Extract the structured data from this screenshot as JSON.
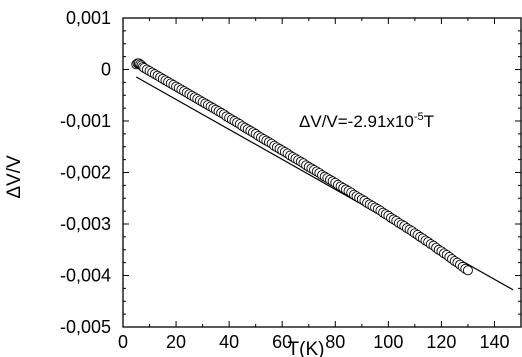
{
  "chart_data": {
    "type": "scatter",
    "xlabel": "T(K)",
    "ylabel": "ΔV/V",
    "xlim": [
      0,
      150
    ],
    "ylim": [
      -0.005,
      0.001
    ],
    "x_ticks": [
      0,
      20,
      40,
      60,
      80,
      100,
      120,
      140
    ],
    "x_tick_labels": [
      "0",
      "20",
      "40",
      "60",
      "80",
      "100",
      "120",
      "140"
    ],
    "y_ticks": [
      0.001,
      0,
      -0.001,
      -0.002,
      -0.003,
      -0.004,
      -0.005
    ],
    "y_tick_labels": [
      "0,001",
      "0",
      "-0,001",
      "-0,002",
      "-0,003",
      "-0,004",
      "-0,005"
    ],
    "grid": false,
    "annotation": {
      "prefix": "ΔV/V=-2.91x10",
      "exponent": "-5",
      "suffix": "T"
    },
    "fit_line": {
      "slope": -2.91e-05,
      "intercept": 0,
      "x_range": [
        5,
        147
      ]
    },
    "series": [
      {
        "marker": "open-circle",
        "x": [
          5,
          5.5,
          6,
          6.5,
          7,
          7.5,
          8,
          9,
          10,
          11,
          12,
          13,
          14,
          15,
          16,
          17,
          18,
          19,
          20,
          21,
          22,
          23,
          24,
          25,
          26,
          27,
          28,
          29,
          30,
          31,
          32,
          33,
          34,
          35,
          36,
          37,
          38,
          39,
          40,
          41,
          42,
          43,
          44,
          45,
          46,
          47,
          48,
          49,
          50,
          51,
          52,
          53,
          54,
          55,
          56,
          57,
          58,
          59,
          60,
          61,
          62,
          63,
          64,
          65,
          66,
          67,
          68,
          69,
          70,
          71,
          72,
          73,
          74,
          75,
          76,
          77,
          78,
          79,
          80,
          81,
          82,
          83,
          84,
          85,
          86,
          87,
          88,
          89,
          90,
          91,
          92,
          93,
          94,
          95,
          96,
          97,
          98,
          99,
          100,
          101,
          102,
          103,
          104,
          105,
          106,
          107,
          108,
          109,
          110,
          111,
          112,
          113,
          114,
          115,
          116,
          117,
          118,
          119,
          120,
          121,
          122,
          123,
          124,
          125,
          126,
          127,
          128,
          129,
          130
        ],
        "y": [
          0.0001,
          0.00012,
          0.00012,
          0.0001,
          8e-05,
          5e-05,
          3e-05,
          0,
          -3e-05,
          -6e-05,
          -9e-05,
          -0.00012,
          -0.00015,
          -0.00018,
          -0.00021,
          -0.00024,
          -0.00027,
          -0.0003,
          -0.00033,
          -0.00036,
          -0.00039,
          -0.00042,
          -0.00045,
          -0.00048,
          -0.00051,
          -0.00054,
          -0.00057,
          -0.0006,
          -0.00063,
          -0.00066,
          -0.00069,
          -0.00072,
          -0.00075,
          -0.00078,
          -0.00081,
          -0.00084,
          -0.00087,
          -0.00091,
          -0.00094,
          -0.00097,
          -0.001,
          -0.00103,
          -0.00106,
          -0.0011,
          -0.00113,
          -0.00116,
          -0.00119,
          -0.00122,
          -0.00125,
          -0.00129,
          -0.00132,
          -0.00135,
          -0.00138,
          -0.00141,
          -0.00144,
          -0.00148,
          -0.00151,
          -0.00154,
          -0.00157,
          -0.0016,
          -0.00163,
          -0.00167,
          -0.0017,
          -0.00173,
          -0.00176,
          -0.00179,
          -0.00182,
          -0.00186,
          -0.00189,
          -0.00192,
          -0.00195,
          -0.00198,
          -0.00201,
          -0.00205,
          -0.00208,
          -0.00211,
          -0.00214,
          -0.00217,
          -0.0022,
          -0.00224,
          -0.00227,
          -0.0023,
          -0.00233,
          -0.00236,
          -0.00239,
          -0.00243,
          -0.00246,
          -0.00249,
          -0.00252,
          -0.00255,
          -0.00259,
          -0.00262,
          -0.00265,
          -0.00268,
          -0.00271,
          -0.00274,
          -0.00278,
          -0.00281,
          -0.00284,
          -0.00288,
          -0.00291,
          -0.00294,
          -0.00298,
          -0.00301,
          -0.00304,
          -0.00308,
          -0.00311,
          -0.00314,
          -0.00318,
          -0.00321,
          -0.00325,
          -0.00328,
          -0.00332,
          -0.00335,
          -0.00339,
          -0.00342,
          -0.00346,
          -0.0035,
          -0.00353,
          -0.00357,
          -0.0036,
          -0.00364,
          -0.00368,
          -0.00372,
          -0.00375,
          -0.00379,
          -0.00383,
          -0.00387,
          -0.0039
        ]
      }
    ]
  }
}
